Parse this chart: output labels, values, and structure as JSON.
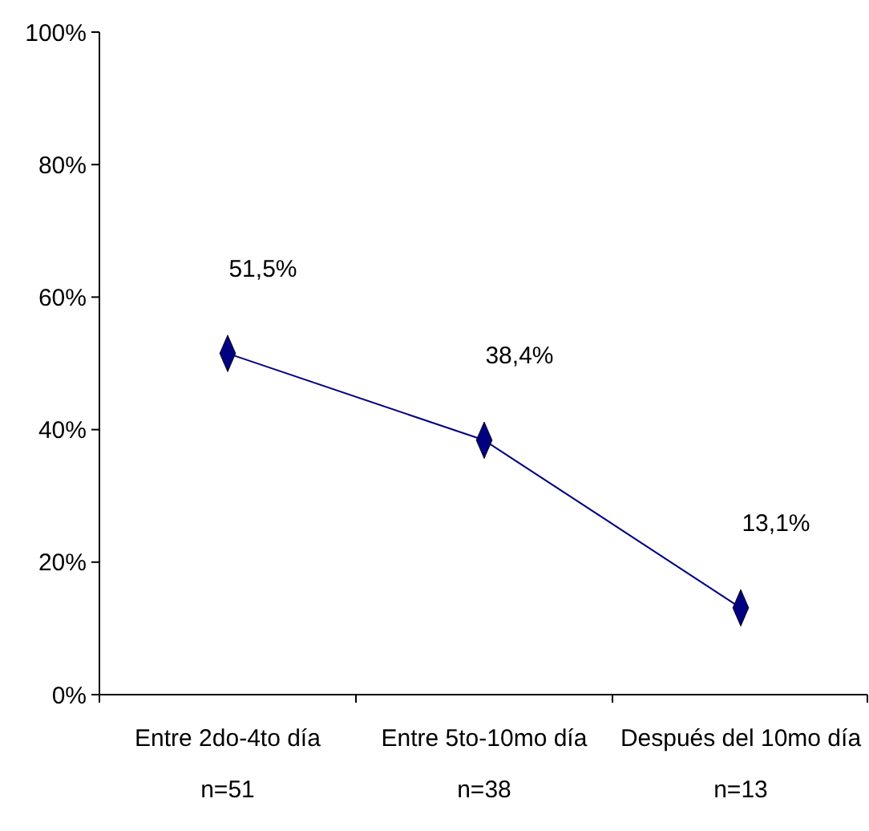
{
  "chart_data": {
    "type": "line",
    "categories": [
      "Entre 2do-4to día\nn=51",
      "Entre 5to-10mo día\nn=38",
      "Después del 10mo día\nn=13"
    ],
    "series": [
      {
        "color": "#000080",
        "values": [
          51.5,
          38.4,
          13.1
        ],
        "value_labels": [
          "51,5%",
          "38,4%",
          "13,1%"
        ]
      }
    ],
    "ylim": [
      0,
      100
    ],
    "yticks": [
      {
        "value": 0,
        "label": "0%"
      },
      {
        "value": 20,
        "label": "20%"
      },
      {
        "value": 40,
        "label": "40%"
      },
      {
        "value": 60,
        "label": "60%"
      },
      {
        "value": 80,
        "label": "80%"
      },
      {
        "value": 100,
        "label": "100%"
      }
    ],
    "marker": "diamond"
  }
}
